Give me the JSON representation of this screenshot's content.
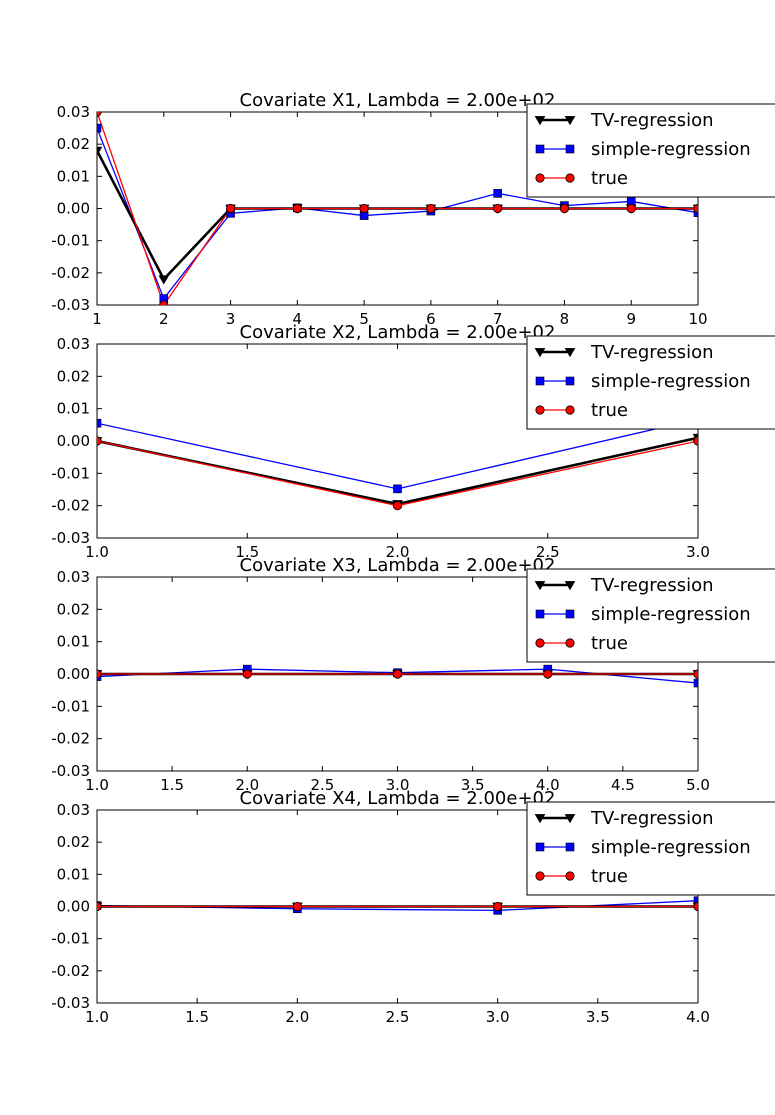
{
  "chart_data": [
    {
      "type": "line",
      "title": "Covariate X1, Lambda = 2.00e+02",
      "x": [
        1,
        2,
        3,
        4,
        5,
        6,
        7,
        8,
        9,
        10
      ],
      "xlim": [
        1,
        10
      ],
      "ylim": [
        -0.03,
        0.03
      ],
      "xticks": [
        "1",
        "2",
        "3",
        "4",
        "5",
        "6",
        "7",
        "8",
        "9",
        "10"
      ],
      "yticks": [
        "0.03",
        "0.02",
        "0.01",
        "0.00",
        "-0.01",
        "-0.02",
        "-0.03"
      ],
      "legend_position": "top-right",
      "series": [
        {
          "name": "TV-regression",
          "color": "#000000",
          "marker": "triangle-down",
          "values": [
            0.018,
            -0.022,
            0.0,
            0.0,
            0.0,
            0.0,
            0.0,
            0.0,
            0.0,
            0.0
          ]
        },
        {
          "name": "simple-regression",
          "color": "#0000ff",
          "marker": "square",
          "values": [
            0.025,
            -0.028,
            -0.0015,
            0.0002,
            -0.0022,
            -0.0008,
            0.0047,
            0.0009,
            0.0022,
            -0.0013
          ]
        },
        {
          "name": "true",
          "color": "#ff0000",
          "marker": "circle",
          "values": [
            0.03,
            -0.03,
            0.0,
            0.0,
            0.0,
            0.0,
            0.0,
            0.0,
            0.0,
            0.0
          ]
        }
      ]
    },
    {
      "type": "line",
      "title": "Covariate X2, Lambda = 2.00e+02",
      "x": [
        1,
        2,
        3
      ],
      "xlim": [
        1,
        3
      ],
      "ylim": [
        -0.03,
        0.03
      ],
      "xticks": [
        "1.0",
        "1.5",
        "2.0",
        "2.5",
        "3.0"
      ],
      "yticks": [
        "0.03",
        "0.02",
        "0.01",
        "0.00",
        "-0.01",
        "-0.02",
        "-0.03"
      ],
      "legend_position": "top-right",
      "series": [
        {
          "name": "TV-regression",
          "color": "#000000",
          "marker": "triangle-down",
          "values": [
            0.0,
            -0.0195,
            0.001
          ]
        },
        {
          "name": "simple-regression",
          "color": "#0000ff",
          "marker": "square",
          "values": [
            0.0055,
            -0.0148,
            0.0068
          ]
        },
        {
          "name": "true",
          "color": "#ff0000",
          "marker": "circle",
          "values": [
            0.0,
            -0.02,
            0.0
          ]
        }
      ]
    },
    {
      "type": "line",
      "title": "Covariate X3, Lambda = 2.00e+02",
      "x": [
        1,
        2,
        3,
        4,
        5
      ],
      "xlim": [
        1,
        5
      ],
      "ylim": [
        -0.03,
        0.03
      ],
      "xticks": [
        "1.0",
        "1.5",
        "2.0",
        "2.5",
        "3.0",
        "3.5",
        "4.0",
        "4.5",
        "5.0"
      ],
      "yticks": [
        "0.03",
        "0.02",
        "0.01",
        "0.00",
        "-0.01",
        "-0.02",
        "-0.03"
      ],
      "legend_position": "top-right",
      "series": [
        {
          "name": "TV-regression",
          "color": "#000000",
          "marker": "triangle-down",
          "values": [
            0.0,
            0.0,
            0.0,
            0.0,
            0.0
          ]
        },
        {
          "name": "simple-regression",
          "color": "#0000ff",
          "marker": "square",
          "values": [
            -0.0008,
            0.0015,
            0.0004,
            0.0015,
            -0.0028
          ]
        },
        {
          "name": "true",
          "color": "#ff0000",
          "marker": "circle",
          "values": [
            0.0,
            0.0,
            0.0,
            0.0,
            0.0
          ]
        }
      ]
    },
    {
      "type": "line",
      "title": "Covariate X4, Lambda = 2.00e+02",
      "x": [
        1,
        2,
        3,
        4
      ],
      "xlim": [
        1,
        4
      ],
      "ylim": [
        -0.03,
        0.03
      ],
      "xticks": [
        "1.0",
        "1.5",
        "2.0",
        "2.5",
        "3.0",
        "3.5",
        "4.0"
      ],
      "yticks": [
        "0.03",
        "0.02",
        "0.01",
        "0.00",
        "-0.01",
        "-0.02",
        "-0.03"
      ],
      "legend_position": "top-right",
      "series": [
        {
          "name": "TV-regression",
          "color": "#000000",
          "marker": "triangle-down",
          "values": [
            0.0,
            0.0,
            0.0,
            0.0
          ]
        },
        {
          "name": "simple-regression",
          "color": "#0000ff",
          "marker": "square",
          "values": [
            0.0003,
            -0.0007,
            -0.0012,
            0.0018
          ]
        },
        {
          "name": "true",
          "color": "#ff0000",
          "marker": "circle",
          "values": [
            0.0,
            0.0,
            0.0,
            0.0
          ]
        }
      ]
    }
  ]
}
